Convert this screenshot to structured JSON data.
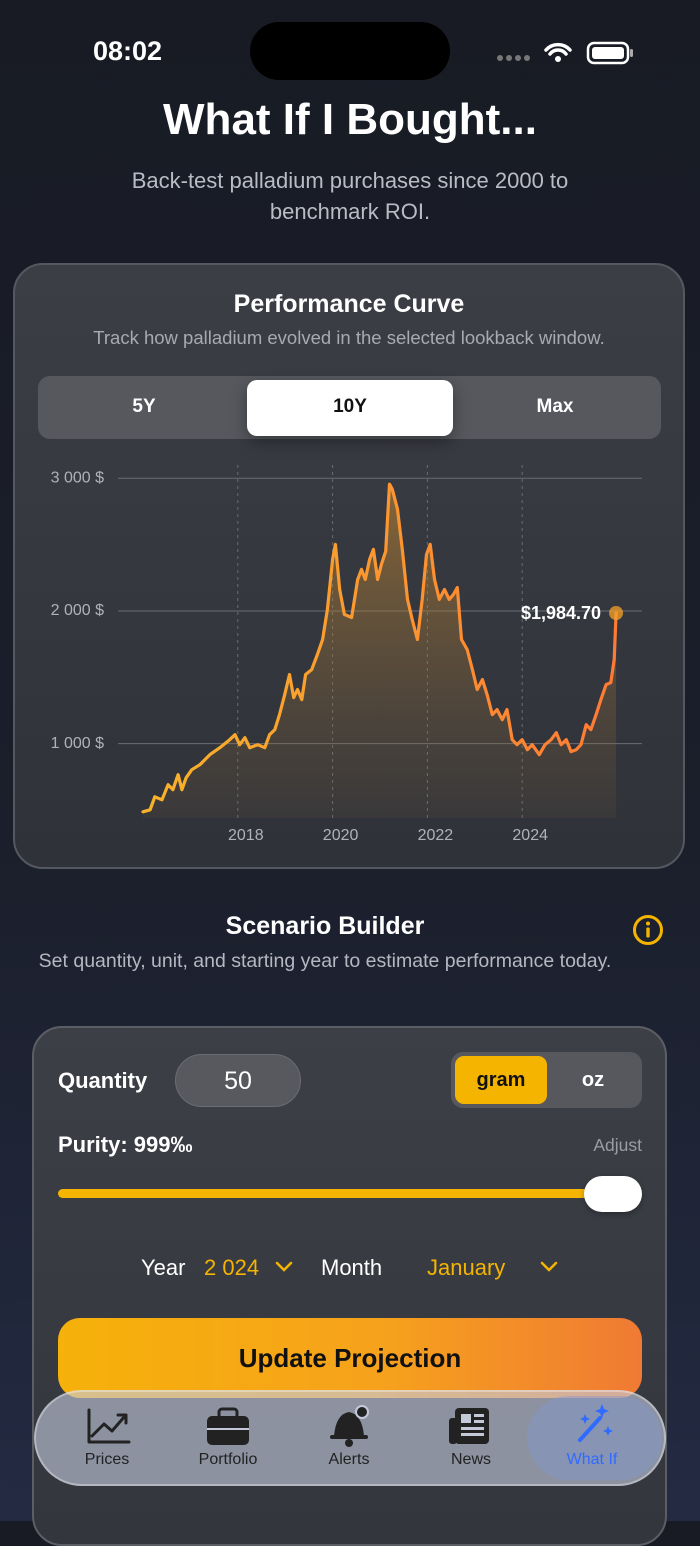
{
  "status": {
    "time": "08:02"
  },
  "header": {
    "title": "What If I Bought...",
    "subtitle": "Back-test palladium purchases since 2000 to benchmark ROI."
  },
  "performance": {
    "title": "Performance Curve",
    "subtitle": "Track how palladium evolved in the selected lookback window.",
    "ranges": [
      "5Y",
      "10Y",
      "Max"
    ]
  },
  "chart_data": {
    "type": "area",
    "x": [
      2016.0,
      2016.15,
      2016.25,
      2016.4,
      2016.53,
      2016.63,
      2016.74,
      2016.82,
      2016.91,
      2017.03,
      2017.2,
      2017.41,
      2017.62,
      2017.83,
      2017.94,
      2018.04,
      2018.15,
      2018.25,
      2018.42,
      2018.57,
      2018.67,
      2018.78,
      2018.88,
      2018.99,
      2019.09,
      2019.18,
      2019.26,
      2019.35,
      2019.43,
      2019.56,
      2019.68,
      2019.79,
      2019.89,
      2020.0,
      2020.06,
      2020.15,
      2020.25,
      2020.4,
      2020.53,
      2020.61,
      2020.69,
      2020.78,
      2020.86,
      2020.95,
      2021.03,
      2021.12,
      2021.2,
      2021.26,
      2021.37,
      2021.47,
      2021.58,
      2021.68,
      2021.79,
      2021.89,
      2021.98,
      2022.06,
      2022.15,
      2022.25,
      2022.36,
      2022.46,
      2022.55,
      2022.63,
      2022.72,
      2022.84,
      2022.95,
      2023.05,
      2023.16,
      2023.26,
      2023.37,
      2023.47,
      2023.58,
      2023.68,
      2023.79,
      2023.89,
      2024.0,
      2024.11,
      2024.21,
      2024.36,
      2024.48,
      2024.61,
      2024.72,
      2024.82,
      2024.93,
      2025.03,
      2025.14,
      2025.24,
      2025.35,
      2025.45,
      2025.56,
      2025.66,
      2025.77,
      2025.87,
      2025.94,
      2025.98
    ],
    "values": [
      487,
      502,
      600,
      577,
      691,
      653,
      766,
      653,
      743,
      804,
      842,
      917,
      970,
      1030,
      1068,
      992,
      1045,
      970,
      992,
      970,
      1068,
      1106,
      1219,
      1370,
      1521,
      1347,
      1408,
      1332,
      1521,
      1558,
      1672,
      1785,
      2011,
      2389,
      2502,
      2162,
      1974,
      1951,
      2238,
      2313,
      2238,
      2389,
      2464,
      2238,
      2351,
      2449,
      2955,
      2917,
      2766,
      2464,
      2087,
      1936,
      1785,
      2087,
      2426,
      2502,
      2238,
      2087,
      2162,
      2087,
      2125,
      2177,
      1785,
      1709,
      1558,
      1408,
      1483,
      1370,
      1219,
      1257,
      1181,
      1257,
      1030,
      992,
      1030,
      955,
      992,
      917,
      992,
      1030,
      1083,
      992,
      1030,
      940,
      955,
      992,
      1143,
      1106,
      1219,
      1332,
      1445,
      1460,
      1634,
      1984.7
    ],
    "color": "#f7a128",
    "annotation": "$1,984.70",
    "xlim": [
      2016,
      2026
    ],
    "xticks": [
      2018,
      2020,
      2022,
      2024
    ],
    "ylim": [
      440,
      3100
    ],
    "yticks": [
      {
        "value": 1000,
        "label": "1 000 $"
      },
      {
        "value": 2000,
        "label": "2 000 $"
      },
      {
        "value": 3000,
        "label": "3 000 $"
      }
    ],
    "grid": true
  },
  "scenario": {
    "title": "Scenario Builder",
    "subtitle": "Set quantity, unit, and starting year to estimate performance today.",
    "quantity_label": "Quantity",
    "quantity": "50",
    "units": [
      "gram",
      "oz"
    ],
    "purity": "Purity: 999‰",
    "adjust": "Adjust",
    "year_label": "Year",
    "year": "2 024",
    "month_label": "Month",
    "month": "January",
    "button": "Update Projection"
  },
  "tabs": [
    "Prices",
    "Portfolio",
    "Alerts",
    "News",
    "What If"
  ]
}
